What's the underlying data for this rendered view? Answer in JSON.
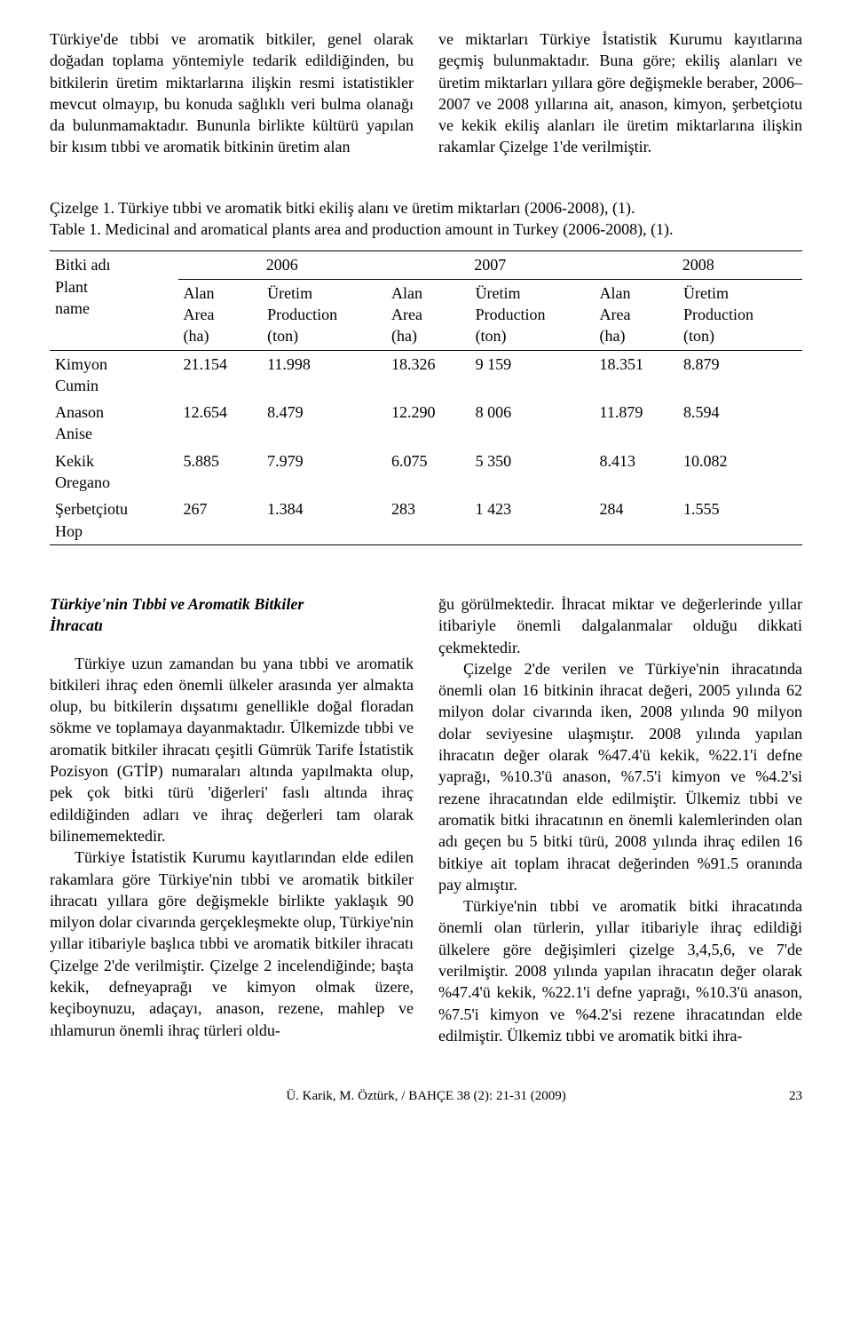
{
  "top_paragraphs": {
    "left": "Türkiye'de tıbbi ve aromatik bitkiler, genel olarak doğadan toplama yöntemiyle tedarik edildiğinden, bu bitkilerin üretim miktarlarına ilişkin resmi istatistikler mevcut olmayıp, bu konuda sağlıklı veri bulma olanağı da bulunmamaktadır. Bununla birlikte kültürü yapılan bir kısım tıbbi ve aromatik bitkinin üretim alan",
    "right": "ve miktarları Türkiye İstatistik Kurumu kayıtlarına geçmiş bulunmaktadır. Buna göre; ekiliş alanları ve üretim miktarları yıllara göre değişmekle beraber, 2006–2007 ve 2008 yıllarına ait, anason, kimyon, şerbetçiotu ve kekik ekiliş alanları ile üretim miktarlarına ilişkin rakamlar Çizelge 1'de verilmiştir."
  },
  "table_caption": {
    "line1": "Çizelge 1. Türkiye tıbbi ve aromatik bitki ekiliş alanı ve üretim miktarları (2006-2008), (1).",
    "line2": "Table 1. Medicinal and aromatical plants area and production amount in Turkey (2006-2008), (1)."
  },
  "table": {
    "row_header": {
      "l1": "Bitki adı",
      "l2": "Plant",
      "l3": "name"
    },
    "years": [
      "2006",
      "2007",
      "2008"
    ],
    "col_sub": {
      "area_l1": "Alan",
      "area_l2": "Area",
      "area_l3": "(ha)",
      "prod_l1": "Üretim",
      "prod_l2": "Production",
      "prod_l3": "(ton)"
    },
    "rows": [
      {
        "name_l1": "Kimyon",
        "name_l2": "Cumin",
        "c": [
          "21.154",
          "11.998",
          "18.326",
          "9 159",
          "18.351",
          "8.879"
        ]
      },
      {
        "name_l1": "Anason",
        "name_l2": "Anise",
        "c": [
          "12.654",
          "8.479",
          "12.290",
          "8 006",
          "11.879",
          "8.594"
        ]
      },
      {
        "name_l1": "Kekik",
        "name_l2": "Oregano",
        "c": [
          "5.885",
          "7.979",
          "6.075",
          "5 350",
          "8.413",
          "10.082"
        ]
      },
      {
        "name_l1": "Şerbetçiotu",
        "name_l2": "Hop",
        "c": [
          "267",
          "1.384",
          "283",
          "1 423",
          "284",
          "1.555"
        ]
      }
    ]
  },
  "section2": {
    "heading_l1": "Türkiye'nin Tıbbi ve Aromatik Bitkiler",
    "heading_l2": "İhracatı",
    "left_p1": "Türkiye uzun zamandan bu yana tıbbi ve aromatik bitkileri ihraç eden önemli ülkeler arasında yer almakta olup, bu bitkilerin dışsatımı genellikle doğal floradan sökme ve toplamaya dayanmaktadır. Ülkemizde tıbbi ve aromatik bitkiler ihracatı çeşitli Gümrük Tarife İstatistik Pozisyon (GTİP) numaraları altında yapılmakta olup, pek çok bitki türü 'diğerleri' faslı altında ihraç edildiğinden adları ve ihraç değerleri tam olarak bilinememektedir.",
    "left_p2": "Türkiye İstatistik Kurumu kayıtlarından elde edilen rakamlara göre Türkiye'nin tıbbi ve aromatik bitkiler ihracatı yıllara göre değişmekle birlikte yaklaşık 90 milyon dolar civarında gerçekleşmekte olup, Türkiye'nin yıllar itibariyle başlıca tıbbi ve aromatik bitkiler ihracatı Çizelge 2'de verilmiştir. Çizelge 2 incelendiğinde; başta kekik, defneyaprağı ve kimyon olmak üzere, keçiboynuzu, adaçayı, anason, rezene, mahlep ve ıhlamurun önemli ihraç türleri oldu-",
    "right_p1": "ğu görülmektedir. İhracat miktar ve değerlerinde yıllar itibariyle önemli dalgalanmalar olduğu dikkati çekmektedir.",
    "right_p2": "Çizelge 2'de verilen ve Türkiye'nin ihracatında önemli olan 16 bitkinin ihracat değeri, 2005 yılında 62 milyon dolar civarında iken, 2008 yılında 90 milyon dolar seviyesine ulaşmıştır. 2008 yılında yapılan ihracatın değer olarak %47.4'ü kekik, %22.1'i defne yaprağı, %10.3'ü anason, %7.5'i kimyon ve %4.2'si rezene ihracatından elde edilmiştir. Ülkemiz tıbbi ve aromatik bitki ihracatının en önemli kalemlerinden olan adı geçen bu 5 bitki türü, 2008 yılında ihraç edilen 16 bitkiye ait toplam ihracat değerinden %91.5 oranında pay almıştır.",
    "right_p3": "Türkiye'nin tıbbi ve aromatik bitki ihracatında önemli olan türlerin, yıllar itibariyle ihraç edildiği ülkelere göre değişimleri çizelge 3,4,5,6, ve 7'de verilmiştir. 2008 yılında yapılan ihracatın değer olarak %47.4'ü kekik, %22.1'i defne yaprağı, %10.3'ü anason, %7.5'i kimyon ve %4.2'si rezene ihracatından elde edilmiştir. Ülkemiz tıbbi ve aromatik bitki ihra-"
  },
  "footer": {
    "center": "Ü. Karik, M. Öztürk, / BAHÇE 38 (2): 21-31 (2009)",
    "page": "23"
  }
}
